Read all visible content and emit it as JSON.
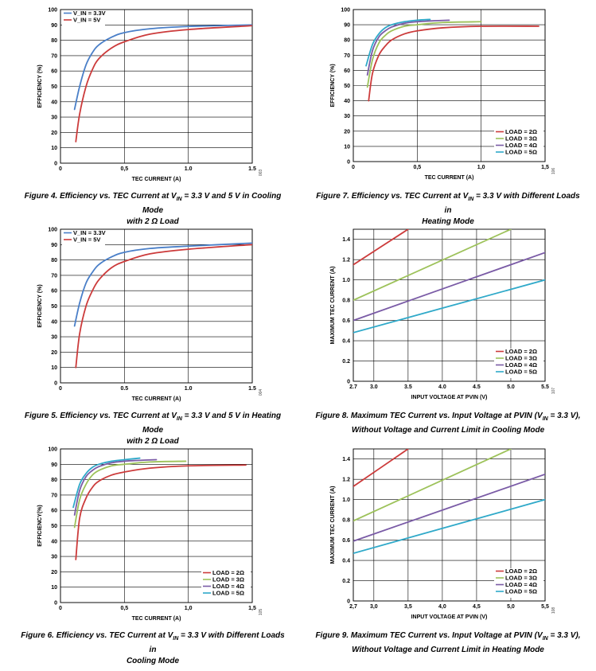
{
  "colors": {
    "red": "#cc3b3b",
    "blue": "#4a7fc8",
    "green": "#9dc25a",
    "purple": "#7a5ba6",
    "cyan": "#2fa9c9"
  },
  "charts": [
    {
      "id": "fig4",
      "type": "line",
      "xlabel": "TEC CURRENT (A)",
      "ylabel": "EFFICIENCY (%)",
      "xlim": [
        0,
        1.5
      ],
      "ylim": [
        0,
        100
      ],
      "xticks": [
        0,
        0.5,
        1.0,
        1.5
      ],
      "xtick_labels": [
        "0",
        "0,5",
        "1.0",
        "1.5"
      ],
      "yticks": [
        0,
        10,
        20,
        30,
        40,
        50,
        60,
        70,
        80,
        90,
        100
      ],
      "ytick_labels": [
        "0",
        "10",
        "20",
        "30",
        "40",
        "50",
        "60",
        "70",
        "80",
        "90",
        "100"
      ],
      "grid": true,
      "legend_position": "top-left",
      "fig_code": "003",
      "series": [
        {
          "name": "V_IN = 3.3V",
          "color": "blue",
          "x": [
            0.11,
            0.15,
            0.2,
            0.25,
            0.3,
            0.4,
            0.5,
            0.7,
            1.0,
            1.5
          ],
          "y": [
            35,
            50,
            64,
            72,
            77,
            82,
            85,
            87.5,
            89,
            90
          ]
        },
        {
          "name": "V_IN = 5V",
          "color": "red",
          "x": [
            0.12,
            0.15,
            0.2,
            0.25,
            0.3,
            0.4,
            0.5,
            0.7,
            1.0,
            1.5
          ],
          "y": [
            14,
            32,
            50,
            61,
            68,
            75,
            79,
            84,
            87,
            89.5
          ]
        }
      ]
    },
    {
      "id": "fig7",
      "type": "line",
      "xlabel": "TEC CURRENT (A)",
      "ylabel": "EFFICIENCY (%)",
      "xlim": [
        0,
        1.5
      ],
      "ylim": [
        0,
        100
      ],
      "xticks": [
        0,
        0.5,
        1.0,
        1.5
      ],
      "xtick_labels": [
        "0",
        "0,5",
        "1,0",
        "1,5"
      ],
      "yticks": [
        0,
        10,
        20,
        30,
        40,
        50,
        60,
        70,
        80,
        90,
        100
      ],
      "ytick_labels": [
        "0",
        "10",
        "20",
        "30",
        "40",
        "50",
        "60",
        "70",
        "80",
        "90",
        "100"
      ],
      "grid": true,
      "legend_position": "bottom-right",
      "fig_code": "106",
      "series": [
        {
          "name": "LOAD = 2Ω",
          "color": "red",
          "x": [
            0.12,
            0.15,
            0.2,
            0.25,
            0.3,
            0.4,
            0.5,
            0.7,
            1.0,
            1.45
          ],
          "y": [
            40,
            58,
            70,
            76,
            80,
            84,
            86,
            88,
            89,
            89
          ]
        },
        {
          "name": "LOAD = 3Ω",
          "color": "green",
          "x": [
            0.11,
            0.15,
            0.2,
            0.25,
            0.3,
            0.4,
            0.5,
            0.7,
            1.0
          ],
          "y": [
            49,
            67,
            78,
            83,
            86,
            89,
            90,
            91.5,
            92
          ]
        },
        {
          "name": "LOAD = 4Ω",
          "color": "purple",
          "x": [
            0.11,
            0.15,
            0.2,
            0.25,
            0.3,
            0.4,
            0.5,
            0.6,
            0.75
          ],
          "y": [
            57,
            73,
            82,
            86,
            88.5,
            91,
            92,
            92.5,
            93
          ]
        },
        {
          "name": "LOAD = 5Ω",
          "color": "cyan",
          "x": [
            0.1,
            0.15,
            0.2,
            0.25,
            0.3,
            0.4,
            0.5,
            0.6
          ],
          "y": [
            63,
            77,
            84,
            88,
            90,
            92,
            93,
            93.5
          ]
        }
      ]
    },
    {
      "id": "fig5",
      "type": "line",
      "xlabel": "TEC CURRENT (A)",
      "ylabel": "EFFICIENCY (%)",
      "xlim": [
        0,
        1.5
      ],
      "ylim": [
        0,
        100
      ],
      "xticks": [
        0,
        0.5,
        1.0,
        1.5
      ],
      "xtick_labels": [
        "0",
        "0.5",
        "1.0",
        "1.5"
      ],
      "yticks": [
        0,
        10,
        20,
        30,
        40,
        50,
        60,
        70,
        80,
        90,
        100
      ],
      "ytick_labels": [
        "0",
        "10",
        "20",
        "30",
        "40",
        "50",
        "60",
        "70",
        "80",
        "90",
        "100"
      ],
      "grid": true,
      "legend_position": "top-left",
      "fig_code": "004",
      "series": [
        {
          "name": "V_IN = 3.3V",
          "color": "blue",
          "x": [
            0.11,
            0.15,
            0.2,
            0.25,
            0.3,
            0.4,
            0.5,
            0.7,
            1.0,
            1.5
          ],
          "y": [
            37,
            52,
            65,
            72,
            77,
            82,
            85,
            87.5,
            89,
            91
          ]
        },
        {
          "name": "V_IN = 5V",
          "color": "red",
          "x": [
            0.12,
            0.15,
            0.2,
            0.25,
            0.3,
            0.4,
            0.5,
            0.7,
            1.0,
            1.5
          ],
          "y": [
            10,
            32,
            50,
            60,
            67,
            75,
            79,
            84,
            87,
            90
          ]
        }
      ]
    },
    {
      "id": "fig8",
      "type": "line",
      "xlabel": "INPUT VOLTAGE AT PVIN (V)",
      "ylabel": "MAXIMUM TEC CURRENT (A)",
      "xlim": [
        2.7,
        5.5
      ],
      "ylim": [
        0,
        1.5
      ],
      "xticks": [
        2.7,
        3.0,
        3.5,
        4.0,
        4.5,
        5.0,
        5.5
      ],
      "xtick_labels": [
        "2.7",
        "3.0",
        "3.5",
        "4.0",
        "4.5",
        "5.0",
        "5.5"
      ],
      "yticks": [
        0,
        0.2,
        0.4,
        0.6,
        0.8,
        1.0,
        1.2,
        1.4
      ],
      "ytick_labels": [
        "0",
        "0.2",
        "0.4",
        "0.6",
        "0.8",
        "1.0",
        "1.2",
        "1.4"
      ],
      "grid": true,
      "legend_position": "bottom-right",
      "fig_code": "107",
      "series": [
        {
          "name": "LOAD = 2Ω",
          "color": "red",
          "x": [
            2.7,
            3.5
          ],
          "y": [
            1.15,
            1.5
          ]
        },
        {
          "name": "LOAD = 3Ω",
          "color": "green",
          "x": [
            2.7,
            5.0
          ],
          "y": [
            0.8,
            1.5
          ]
        },
        {
          "name": "LOAD = 4Ω",
          "color": "purple",
          "x": [
            2.7,
            5.5
          ],
          "y": [
            0.6,
            1.27
          ]
        },
        {
          "name": "LOAD = 5Ω",
          "color": "cyan",
          "x": [
            2.7,
            5.5
          ],
          "y": [
            0.48,
            1.0
          ]
        }
      ]
    },
    {
      "id": "fig6",
      "type": "line",
      "xlabel": "TEC CURRENT (A)",
      "ylabel": "EFFICIENCY(%)",
      "xlim": [
        0,
        1.5
      ],
      "ylim": [
        0,
        100
      ],
      "xticks": [
        0,
        0.5,
        1.0,
        1.5
      ],
      "xtick_labels": [
        "0",
        "0,5",
        "1,0",
        "1,5"
      ],
      "yticks": [
        0,
        10,
        20,
        30,
        40,
        50,
        60,
        70,
        80,
        90,
        100
      ],
      "ytick_labels": [
        "0",
        "10",
        "20",
        "30",
        "40",
        "50",
        "60",
        "70",
        "80",
        "90",
        "100"
      ],
      "grid": true,
      "legend_position": "bottom-right",
      "fig_code": "105",
      "series": [
        {
          "name": "LOAD = 2Ω",
          "color": "red",
          "x": [
            0.12,
            0.15,
            0.2,
            0.25,
            0.3,
            0.4,
            0.5,
            0.7,
            1.0,
            1.45
          ],
          "y": [
            28,
            55,
            68,
            75,
            79,
            83,
            85,
            87.5,
            89,
            89.5
          ]
        },
        {
          "name": "LOAD = 3Ω",
          "color": "green",
          "x": [
            0.11,
            0.15,
            0.2,
            0.25,
            0.3,
            0.4,
            0.5,
            0.7,
            0.98
          ],
          "y": [
            49,
            67,
            77,
            83,
            86,
            89,
            90,
            91.5,
            92
          ]
        },
        {
          "name": "LOAD = 4Ω",
          "color": "purple",
          "x": [
            0.11,
            0.15,
            0.2,
            0.25,
            0.3,
            0.4,
            0.5,
            0.6,
            0.75
          ],
          "y": [
            57,
            73,
            82,
            86,
            88.5,
            91,
            92,
            92.5,
            93
          ]
        },
        {
          "name": "LOAD = 5Ω",
          "color": "cyan",
          "x": [
            0.1,
            0.15,
            0.2,
            0.25,
            0.3,
            0.4,
            0.5,
            0.62
          ],
          "y": [
            62,
            77,
            84,
            88,
            90,
            92,
            93,
            94
          ]
        }
      ]
    },
    {
      "id": "fig9",
      "type": "line",
      "xlabel": "INPUT VOLTAGE AT PVIN (V)",
      "ylabel": "MAXIMUM TEC CURRENT (A)",
      "xlim": [
        2.7,
        5.5
      ],
      "ylim": [
        0,
        1.5
      ],
      "xticks": [
        2.7,
        3.0,
        3.5,
        4.0,
        4.5,
        5.0,
        5.5
      ],
      "xtick_labels": [
        "2,7",
        "3,0",
        "3,5",
        "4,0",
        "4,5",
        "5,0",
        "5,5"
      ],
      "yticks": [
        0,
        0.2,
        0.4,
        0.6,
        0.8,
        1.0,
        1.2,
        1.4
      ],
      "ytick_labels": [
        "0",
        "0.2",
        "0.4",
        "0.6",
        "0.8",
        "1.0",
        "1.2",
        "1.4"
      ],
      "grid": true,
      "legend_position": "bottom-right",
      "fig_code": "108",
      "series": [
        {
          "name": "LOAD = 2Ω",
          "color": "red",
          "x": [
            2.7,
            3.5
          ],
          "y": [
            1.13,
            1.5
          ]
        },
        {
          "name": "LOAD = 3Ω",
          "color": "green",
          "x": [
            2.7,
            5.0
          ],
          "y": [
            0.79,
            1.5
          ]
        },
        {
          "name": "LOAD = 4Ω",
          "color": "purple",
          "x": [
            2.7,
            5.5
          ],
          "y": [
            0.59,
            1.25
          ]
        },
        {
          "name": "LOAD = 5Ω",
          "color": "cyan",
          "x": [
            2.7,
            5.5
          ],
          "y": [
            0.47,
            1.0
          ]
        }
      ]
    }
  ],
  "captions": {
    "fig4": {
      "a": "Figure 4. Efficiency vs. TEC Current at V",
      "sub": "IN",
      "b": " = 3.3 V and 5 V in Cooling Mode",
      "c": "with 2 Ω Load"
    },
    "fig7": {
      "a": "Figure 7. Efficiency vs. TEC Current at V",
      "sub": "IN",
      "b": " = 3.3 V with Different Loads in",
      "c": "Heating Mode"
    },
    "fig5": {
      "a": "Figure 5. Efficiency vs. TEC Current at V",
      "sub": "IN",
      "b": " = 3.3 V and 5 V in Heating Mode",
      "c": "with 2 Ω Load"
    },
    "fig8": {
      "a": "Figure 8. Maximum TEC Current vs. Input Voltage at PVIN (V",
      "sub": "IN",
      "b": " = 3.3 V),",
      "c": "Without Voltage and Current Limit in Cooling Mode"
    },
    "fig6": {
      "a": "Figure 6. Efficiency vs. TEC Current at V",
      "sub": "IN",
      "b": " = 3.3 V with Different Loads in",
      "c": "Cooling Mode"
    },
    "fig9": {
      "a": "Figure 9. Maximum TEC Current vs. Input Voltage at PVIN (V",
      "sub": "IN",
      "b": " = 3.3 V),",
      "c": "Without Voltage and Current Limit in Heating Mode"
    }
  }
}
